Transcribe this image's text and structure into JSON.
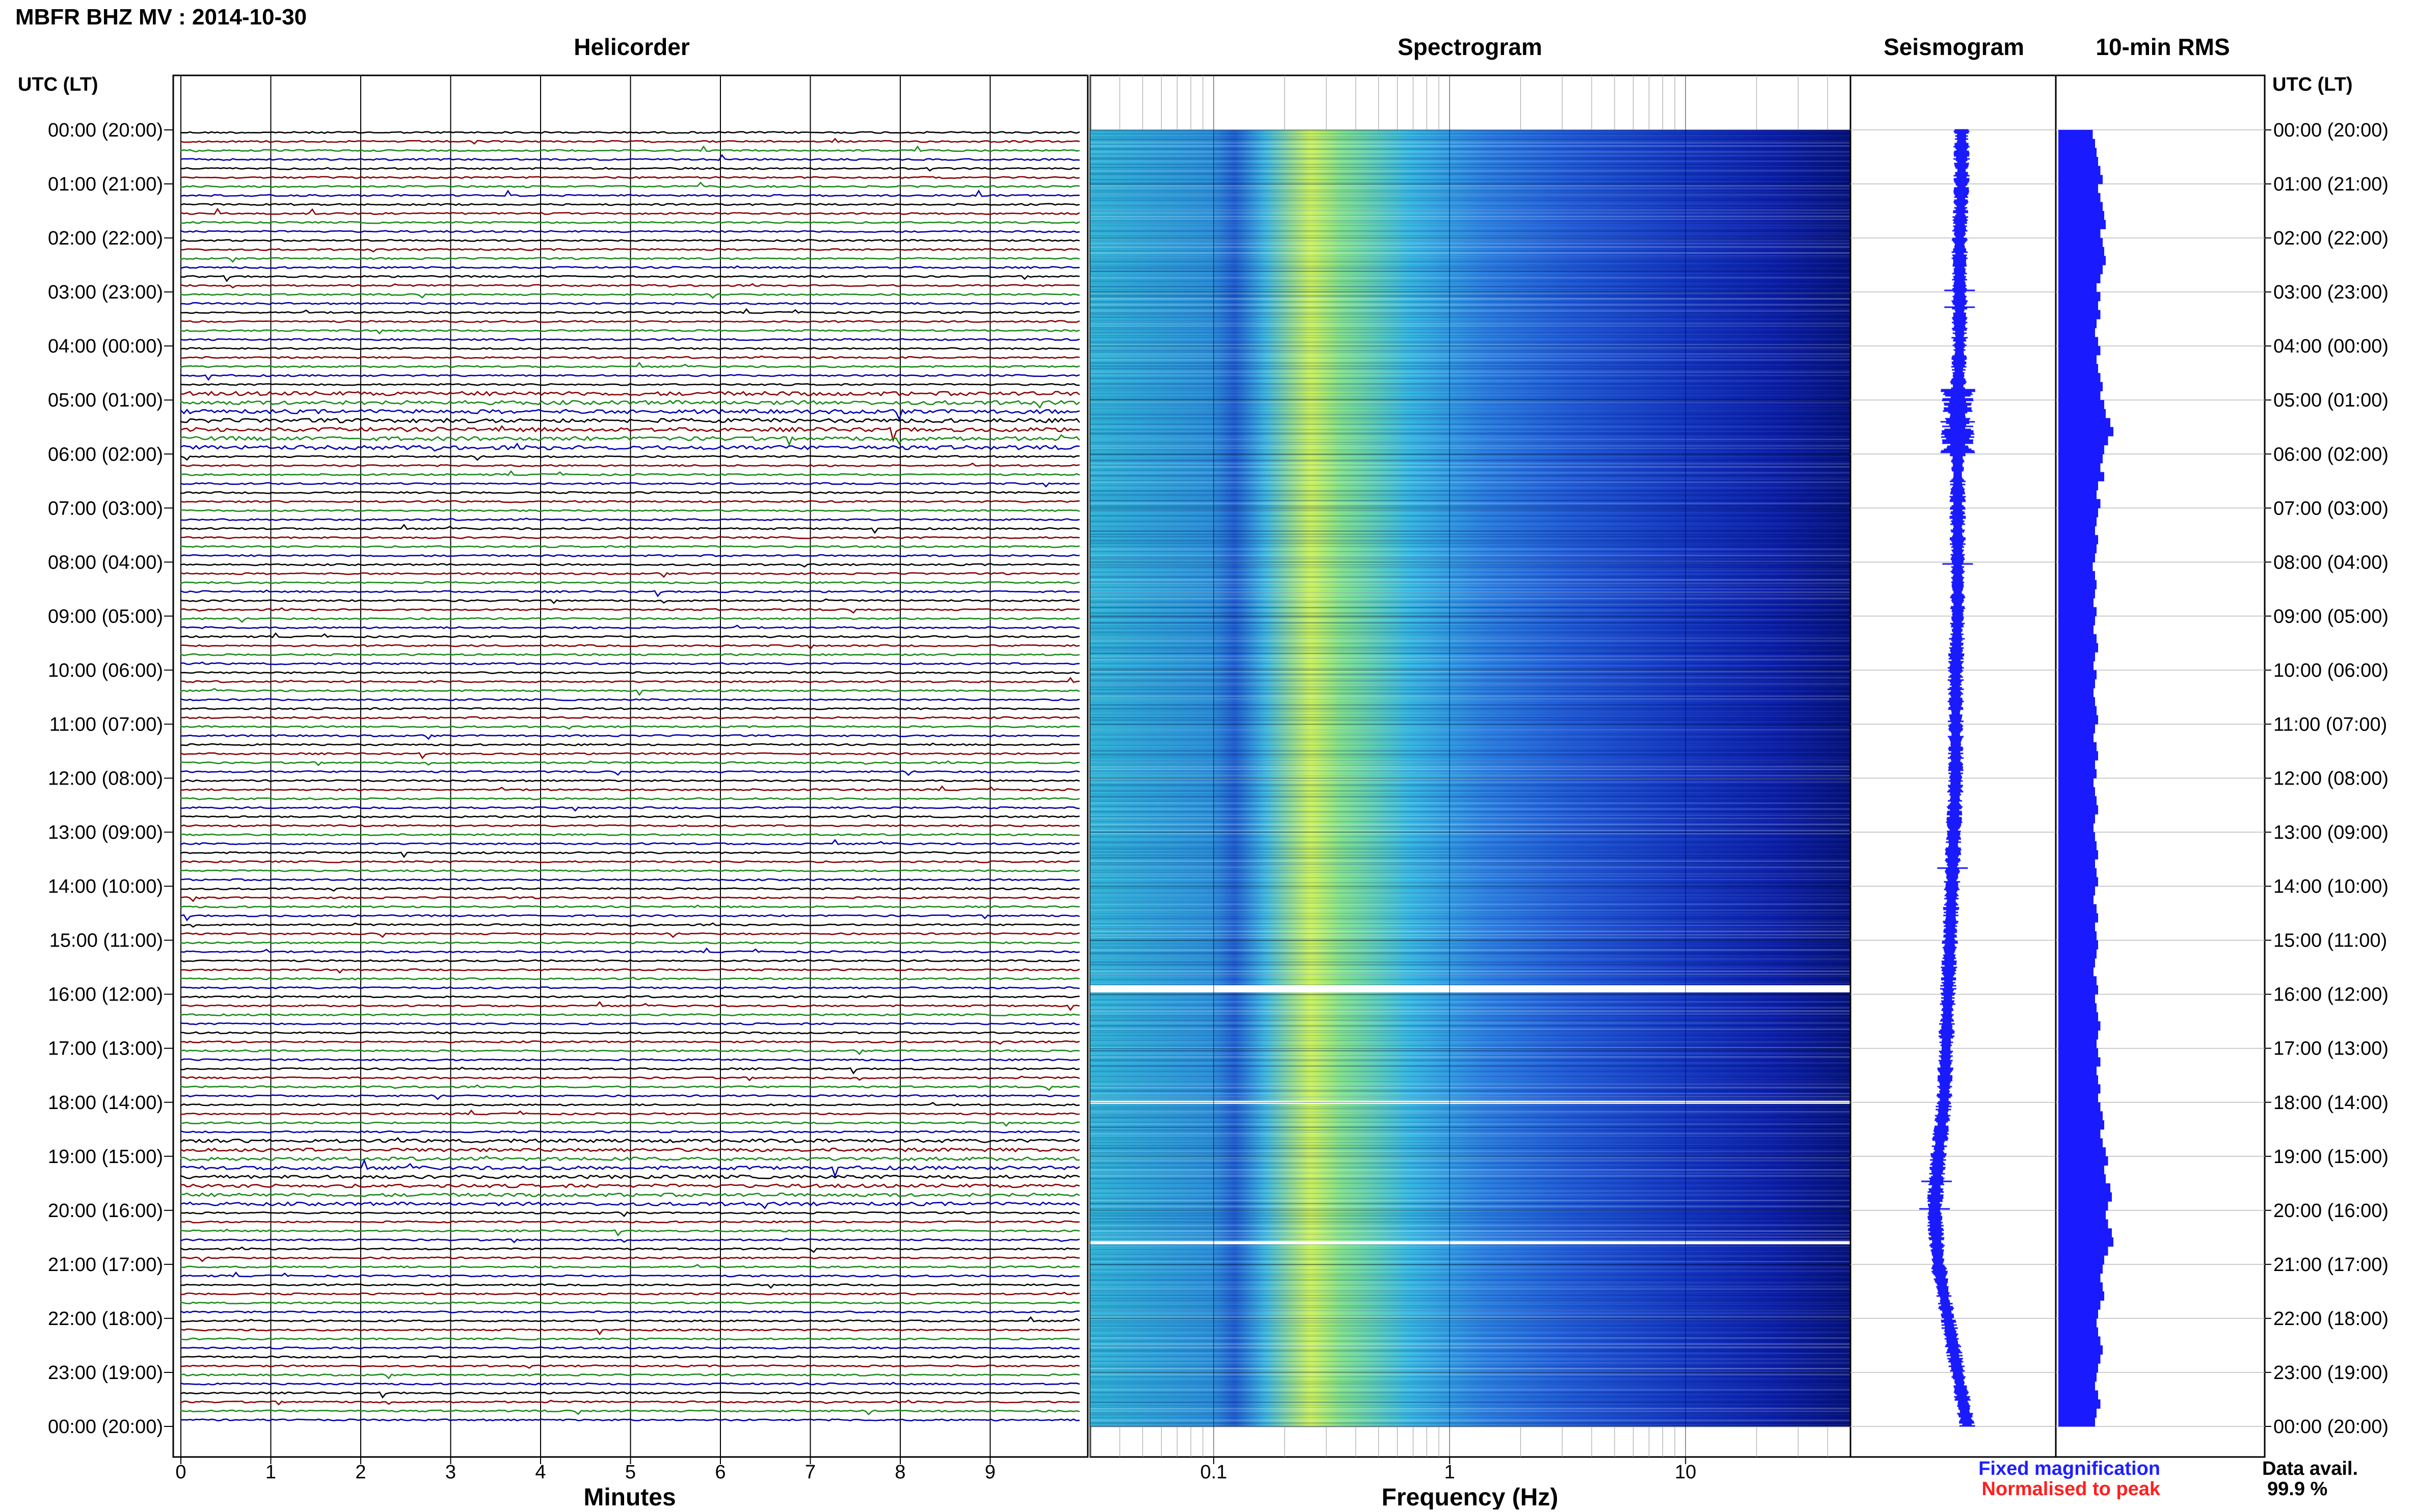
{
  "header": {
    "title": "MBFR BHZ MV : 2014-10-30"
  },
  "panels": {
    "helicorder_title": "Helicorder",
    "spectrogram_title": "Spectrogram",
    "seismogram_title": "Seismogram",
    "rms_title": "10-min RMS",
    "left_axis_title": "UTC (LT)",
    "right_axis_title": "UTC (LT)"
  },
  "axes": {
    "minutes_label": "Minutes",
    "frequency_label": "Frequency (Hz)",
    "minutes_ticks": [
      "0",
      "1",
      "2",
      "3",
      "4",
      "5",
      "6",
      "7",
      "8",
      "9"
    ],
    "frequency_ticks": [
      "0.1",
      "1",
      "10"
    ]
  },
  "legend": {
    "fixed": "Fixed magnification",
    "normalised": "Normalised to peak",
    "fixed_color": "#1f1fff",
    "normalised_color": "#ff1f1f"
  },
  "availability": {
    "label": "Data avail.",
    "value": "99.9 %"
  },
  "colors": {
    "helicorder_traces": [
      "#000000",
      "#8b0000",
      "#1a8a1a",
      "#0000b0"
    ],
    "seismogram": "#1a1aff",
    "rms": "#1a1aff",
    "spectrogram_low": "#00007a",
    "spectrogram_high": "#d8ff3a"
  },
  "chart_data": {
    "type": "heatmap",
    "time_labels": [
      "00:00 (20:00)",
      "01:00 (21:00)",
      "02:00 (22:00)",
      "03:00 (23:00)",
      "04:00 (00:00)",
      "05:00 (01:00)",
      "06:00 (02:00)",
      "07:00 (03:00)",
      "08:00 (04:00)",
      "09:00 (05:00)",
      "10:00 (06:00)",
      "11:00 (07:00)",
      "12:00 (08:00)",
      "13:00 (09:00)",
      "14:00 (10:00)",
      "15:00 (11:00)",
      "16:00 (12:00)",
      "17:00 (13:00)",
      "18:00 (14:00)",
      "19:00 (15:00)",
      "20:00 (16:00)",
      "21:00 (17:00)",
      "22:00 (18:00)",
      "23:00 (19:00)",
      "00:00 (20:00)"
    ],
    "helicorder_minutes_range": [
      0,
      10
    ],
    "spectrogram_frequency_range_hz": [
      0.03,
      50
    ],
    "frequency_scale": "log",
    "spectrogram_data_gaps_utc_hours": [
      15.9,
      18.0,
      20.6
    ],
    "rms_10min_relative": [
      0.45,
      0.48,
      0.5,
      0.52,
      0.55,
      0.58,
      0.52,
      0.55,
      0.58,
      0.6,
      0.62,
      0.55,
      0.58,
      0.6,
      0.62,
      0.58,
      0.55,
      0.5,
      0.55,
      0.52,
      0.55,
      0.5,
      0.48,
      0.52,
      0.55,
      0.5,
      0.52,
      0.55,
      0.58,
      0.55,
      0.6,
      0.62,
      0.68,
      0.72,
      0.65,
      0.6,
      0.58,
      0.55,
      0.6,
      0.52,
      0.5,
      0.55,
      0.52,
      0.5,
      0.48,
      0.52,
      0.5,
      0.48,
      0.45,
      0.48,
      0.5,
      0.48,
      0.46,
      0.5,
      0.48,
      0.46,
      0.5,
      0.52,
      0.48,
      0.46,
      0.5,
      0.48,
      0.46,
      0.48,
      0.5,
      0.52,
      0.48,
      0.46,
      0.5,
      0.52,
      0.48,
      0.5,
      0.46,
      0.48,
      0.5,
      0.52,
      0.48,
      0.46,
      0.48,
      0.5,
      0.52,
      0.48,
      0.5,
      0.52,
      0.48,
      0.46,
      0.5,
      0.52,
      0.48,
      0.5,
      0.52,
      0.5,
      0.48,
      0.46,
      0.5,
      0.52,
      0.48,
      0.5,
      0.52,
      0.55,
      0.52,
      0.5,
      0.52,
      0.55,
      0.5,
      0.52,
      0.55,
      0.52,
      0.55,
      0.58,
      0.6,
      0.55,
      0.58,
      0.62,
      0.65,
      0.6,
      0.62,
      0.68,
      0.7,
      0.65,
      0.62,
      0.65,
      0.7,
      0.72,
      0.65,
      0.6,
      0.58,
      0.55,
      0.58,
      0.6,
      0.55,
      0.52,
      0.5,
      0.52,
      0.55,
      0.58,
      0.55,
      0.52,
      0.5,
      0.48,
      0.52,
      0.55,
      0.5,
      0.48
    ],
    "seismogram_drift_relative": [
      0.0,
      0.0,
      0.01,
      0.01,
      0.01,
      0.02,
      0.02,
      0.02,
      0.02,
      0.02,
      0.03,
      0.03,
      0.03,
      0.04,
      0.05,
      0.06,
      0.07,
      0.08,
      0.09,
      0.12,
      0.14,
      0.12,
      0.07,
      0.02,
      -0.03
    ]
  }
}
